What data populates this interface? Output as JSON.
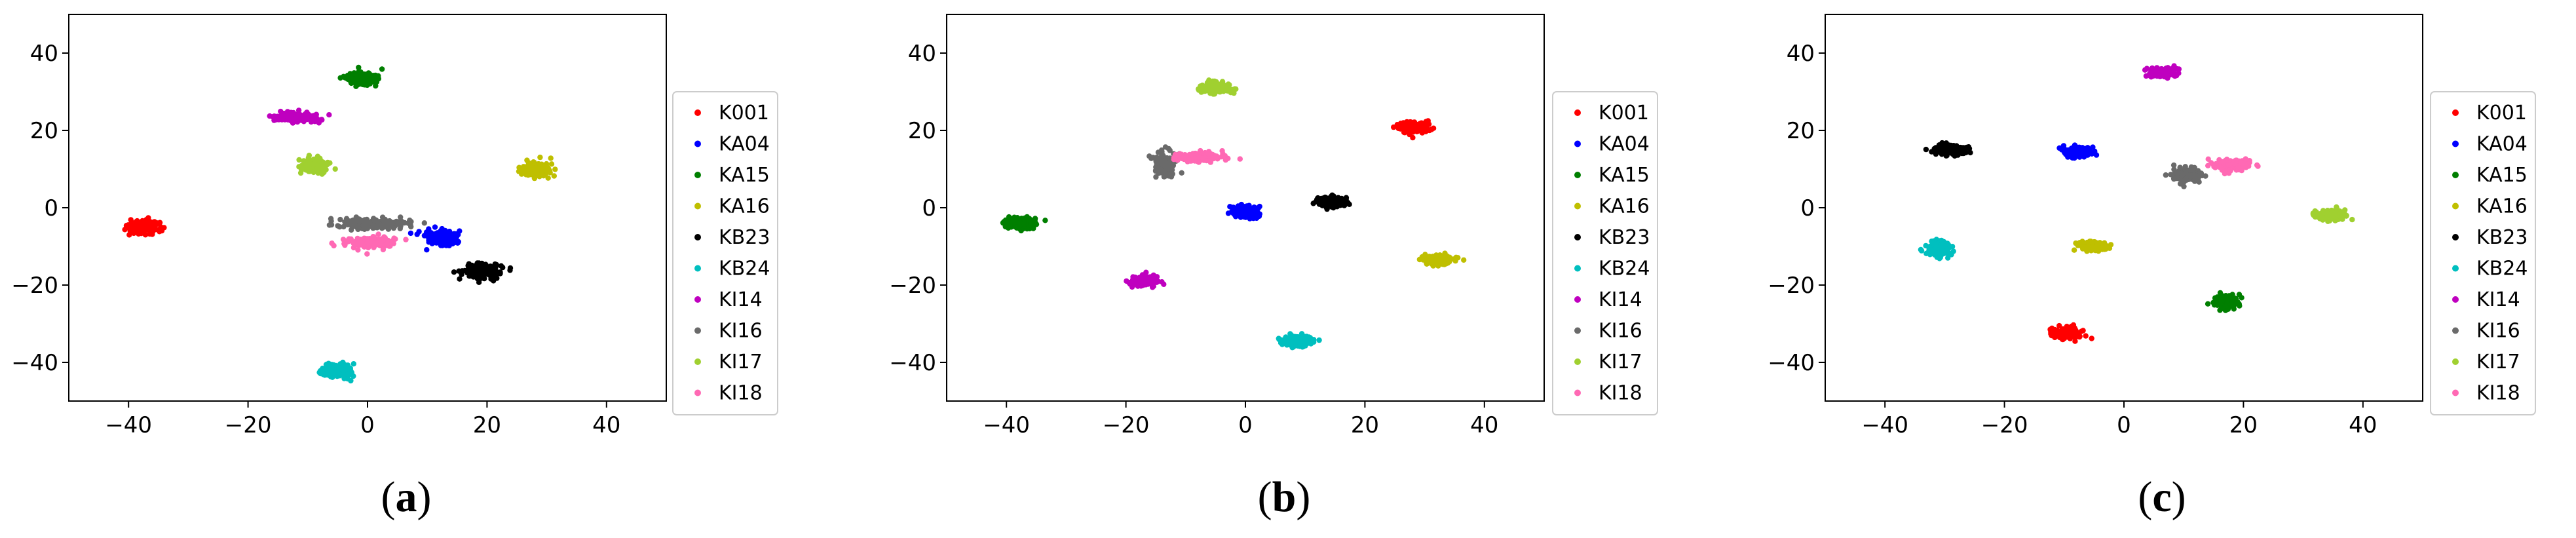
{
  "chart_data": [
    {
      "type": "scatter",
      "panel_label": "a",
      "xlim": [
        -50,
        50
      ],
      "ylim": [
        -50,
        50
      ],
      "xticks": [
        -40,
        -20,
        0,
        20,
        40
      ],
      "yticks": [
        -40,
        -20,
        0,
        20,
        40
      ],
      "grid": false,
      "legend_position": "right",
      "series": [
        {
          "name": "K001",
          "color": "#ff0000",
          "clusters": [
            {
              "cx": -37.5,
              "cy": -5,
              "sx": 2.2,
              "sy": 1.6
            }
          ]
        },
        {
          "name": "KA04",
          "color": "#0000ff",
          "clusters": [
            {
              "cx": 12.5,
              "cy": -8,
              "sx": 2.2,
              "sy": 1.6
            }
          ]
        },
        {
          "name": "KA15",
          "color": "#007f00",
          "clusters": [
            {
              "cx": -1,
              "cy": 33.5,
              "sx": 2.3,
              "sy": 1.4
            }
          ]
        },
        {
          "name": "KA16",
          "color": "#bfbf00",
          "clusters": [
            {
              "cx": 28,
              "cy": 10,
              "sx": 2.0,
              "sy": 1.6
            }
          ]
        },
        {
          "name": "KB23",
          "color": "#000000",
          "clusters": [
            {
              "cx": 19,
              "cy": -16.5,
              "sx": 2.6,
              "sy": 1.6
            }
          ]
        },
        {
          "name": "KB24",
          "color": "#00bfbf",
          "clusters": [
            {
              "cx": -5,
              "cy": -42,
              "sx": 1.8,
              "sy": 1.6
            }
          ]
        },
        {
          "name": "KI14",
          "color": "#bf00bf",
          "clusters": [
            {
              "cx": -12,
              "cy": 23.5,
              "sx": 3.0,
              "sy": 1.0
            }
          ]
        },
        {
          "name": "KI16",
          "color": "#6a6a6a",
          "clusters": [
            {
              "cx": 1,
              "cy": -4,
              "sx": 5.0,
              "sy": 1.2
            }
          ]
        },
        {
          "name": "KI17",
          "color": "#a0d030",
          "clusters": [
            {
              "cx": -9,
              "cy": 11,
              "sx": 1.8,
              "sy": 1.8
            }
          ]
        },
        {
          "name": "KI18",
          "color": "#ff69b4",
          "clusters": [
            {
              "cx": 0.5,
              "cy": -9,
              "sx": 3.5,
              "sy": 1.2
            }
          ]
        }
      ]
    },
    {
      "type": "scatter",
      "panel_label": "b",
      "xlim": [
        -50,
        50
      ],
      "ylim": [
        -50,
        50
      ],
      "xticks": [
        -40,
        -20,
        0,
        20,
        40
      ],
      "yticks": [
        -40,
        -20,
        0,
        20,
        40
      ],
      "grid": false,
      "legend_position": "right",
      "series": [
        {
          "name": "K001",
          "color": "#ff0000",
          "clusters": [
            {
              "cx": 28.5,
              "cy": 21,
              "sx": 2.2,
              "sy": 1.2
            }
          ]
        },
        {
          "name": "KA04",
          "color": "#0000ff",
          "clusters": [
            {
              "cx": 0,
              "cy": -1,
              "sx": 1.6,
              "sy": 1.2
            }
          ]
        },
        {
          "name": "KA15",
          "color": "#007f00",
          "clusters": [
            {
              "cx": -37.5,
              "cy": -4,
              "sx": 2.0,
              "sy": 1.2
            }
          ]
        },
        {
          "name": "KA16",
          "color": "#bfbf00",
          "clusters": [
            {
              "cx": 32.5,
              "cy": -13.5,
              "sx": 2.2,
              "sy": 1.0
            }
          ]
        },
        {
          "name": "KB23",
          "color": "#000000",
          "clusters": [
            {
              "cx": 14.5,
              "cy": 1.5,
              "sx": 2.2,
              "sy": 1.0
            }
          ]
        },
        {
          "name": "KB24",
          "color": "#00bfbf",
          "clusters": [
            {
              "cx": 8.5,
              "cy": -34.5,
              "sx": 2.2,
              "sy": 1.2
            }
          ]
        },
        {
          "name": "KI14",
          "color": "#bf00bf",
          "clusters": [
            {
              "cx": -17,
              "cy": -19,
              "sx": 2.0,
              "sy": 1.0
            }
          ]
        },
        {
          "name": "KI16",
          "color": "#6a6a6a",
          "clusters": [
            {
              "cx": -13.5,
              "cy": 11.5,
              "sx": 1.4,
              "sy": 2.2
            }
          ]
        },
        {
          "name": "KI17",
          "color": "#a0d030",
          "clusters": [
            {
              "cx": -5,
              "cy": 31,
              "sx": 2.0,
              "sy": 1.2
            }
          ]
        },
        {
          "name": "KI18",
          "color": "#ff69b4",
          "clusters": [
            {
              "cx": -8,
              "cy": 13,
              "sx": 3.0,
              "sy": 1.0
            }
          ]
        }
      ]
    },
    {
      "type": "scatter",
      "panel_label": "c",
      "xlim": [
        -50,
        50
      ],
      "ylim": [
        -50,
        50
      ],
      "xticks": [
        -40,
        -20,
        0,
        20,
        40
      ],
      "yticks": [
        -40,
        -20,
        0,
        20,
        40
      ],
      "grid": false,
      "legend_position": "right",
      "series": [
        {
          "name": "K001",
          "color": "#ff0000",
          "clusters": [
            {
              "cx": -9.5,
              "cy": -32.5,
              "sx": 2.0,
              "sy": 1.2
            }
          ]
        },
        {
          "name": "KA04",
          "color": "#0000ff",
          "clusters": [
            {
              "cx": -8,
              "cy": 14.5,
              "sx": 2.0,
              "sy": 1.2
            }
          ]
        },
        {
          "name": "KA15",
          "color": "#007f00",
          "clusters": [
            {
              "cx": 17,
              "cy": -24.5,
              "sx": 1.6,
              "sy": 1.4
            }
          ]
        },
        {
          "name": "KA16",
          "color": "#bfbf00",
          "clusters": [
            {
              "cx": -5,
              "cy": -10,
              "sx": 2.0,
              "sy": 1.0
            }
          ]
        },
        {
          "name": "KB23",
          "color": "#000000",
          "clusters": [
            {
              "cx": -29,
              "cy": 15,
              "sx": 2.2,
              "sy": 1.2
            }
          ]
        },
        {
          "name": "KB24",
          "color": "#00bfbf",
          "clusters": [
            {
              "cx": -31,
              "cy": -10.5,
              "sx": 1.6,
              "sy": 1.6
            }
          ]
        },
        {
          "name": "KI14",
          "color": "#bf00bf",
          "clusters": [
            {
              "cx": 6.5,
              "cy": 35,
              "sx": 2.0,
              "sy": 1.0
            }
          ]
        },
        {
          "name": "KI16",
          "color": "#6a6a6a",
          "clusters": [
            {
              "cx": 10.5,
              "cy": 8.5,
              "sx": 2.0,
              "sy": 1.4
            }
          ]
        },
        {
          "name": "KI17",
          "color": "#a0d030",
          "clusters": [
            {
              "cx": 34.5,
              "cy": -2,
              "sx": 2.2,
              "sy": 1.0
            }
          ]
        },
        {
          "name": "KI18",
          "color": "#ff69b4",
          "clusters": [
            {
              "cx": 18,
              "cy": 11,
              "sx": 2.4,
              "sy": 1.2
            }
          ]
        }
      ]
    }
  ]
}
